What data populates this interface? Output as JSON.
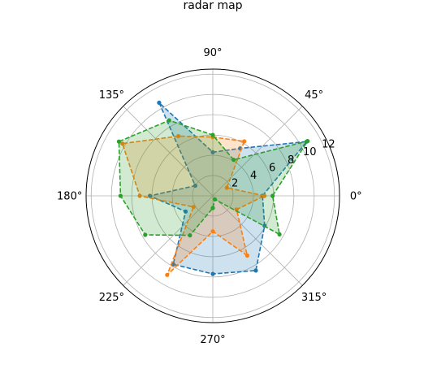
{
  "chart_data": {
    "type": "radar",
    "title": "radar map",
    "angle_labels": [
      "0°",
      "45°",
      "90°",
      "135°",
      "180°",
      "225°",
      "270°",
      "315°"
    ],
    "angle_ticks_deg": [
      0,
      45,
      90,
      135,
      180,
      225,
      270,
      315
    ],
    "r_ticks": [
      2,
      4,
      6,
      8,
      10,
      12
    ],
    "r_tick_labels": [
      "2",
      "4",
      "6",
      "8",
      "10",
      "12"
    ],
    "rlim": [
      0,
      12.5
    ],
    "grid": true,
    "theta_deg": [
      0,
      30,
      60,
      90,
      120,
      150,
      180,
      210,
      240,
      270,
      300,
      330
    ],
    "series": [
      {
        "color": "#1f77b4",
        "values": [
          4.9,
          10.7,
          5.4,
          4.3,
          10.6,
          2.0,
          6.2,
          3.1,
          7.8,
          7.7,
          8.5,
          5.9
        ]
      },
      {
        "color": "#ff7f0e",
        "values": [
          5.1,
          1.6,
          6.2,
          5.8,
          6.8,
          10.3,
          7.2,
          2.2,
          9.0,
          3.5,
          6.8,
          2.7
        ]
      },
      {
        "color": "#2ca02c",
        "values": [
          5.9,
          10.8,
          4.1,
          6.0,
          8.6,
          10.7,
          9.1,
          7.7,
          4.5,
          1.2,
          0.4,
          7.6
        ]
      }
    ]
  }
}
